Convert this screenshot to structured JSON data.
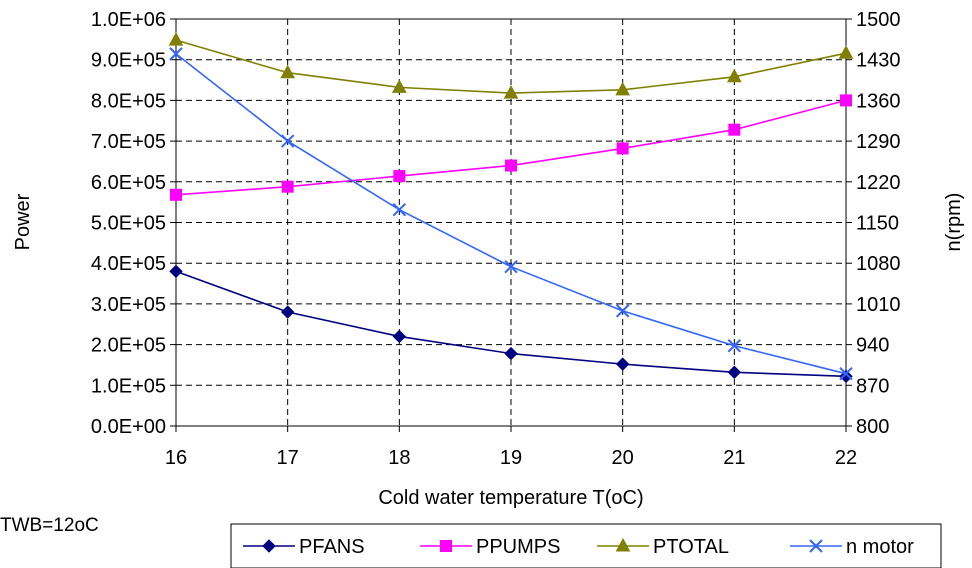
{
  "chart_data": {
    "type": "line",
    "title": "",
    "xlabel": "Cold water temperature T(oC)",
    "ylabel": "Power",
    "y2label": "n(rpm)",
    "x": [
      16,
      17,
      18,
      19,
      20,
      21,
      22
    ],
    "xlim": [
      16,
      22
    ],
    "ylim": [
      0,
      1000000
    ],
    "y2lim": [
      800,
      1500
    ],
    "y_ticks": [
      {
        "value": 0,
        "label": "0.0E+00"
      },
      {
        "value": 100000,
        "label": "1.0E+05"
      },
      {
        "value": 200000,
        "label": "2.0E+05"
      },
      {
        "value": 300000,
        "label": "3.0E+05"
      },
      {
        "value": 400000,
        "label": "4.0E+05"
      },
      {
        "value": 500000,
        "label": "5.0E+05"
      },
      {
        "value": 600000,
        "label": "6.0E+05"
      },
      {
        "value": 700000,
        "label": "7.0E+05"
      },
      {
        "value": 800000,
        "label": "8.0E+05"
      },
      {
        "value": 900000,
        "label": "9.0E+05"
      },
      {
        "value": 1000000,
        "label": "1.0E+06"
      }
    ],
    "y2_ticks": [
      {
        "value": 800,
        "label": "800"
      },
      {
        "value": 870,
        "label": "870"
      },
      {
        "value": 940,
        "label": "940"
      },
      {
        "value": 1010,
        "label": "1010"
      },
      {
        "value": 1080,
        "label": "1080"
      },
      {
        "value": 1150,
        "label": "1150"
      },
      {
        "value": 1220,
        "label": "1220"
      },
      {
        "value": 1290,
        "label": "1290"
      },
      {
        "value": 1360,
        "label": "1360"
      },
      {
        "value": 1430,
        "label": "1430"
      },
      {
        "value": 1500,
        "label": "1500"
      }
    ],
    "grid": true,
    "legend_position": "bottom-right",
    "series": [
      {
        "name": "PFANS",
        "axis": "left",
        "color": "#000080",
        "marker": "diamond",
        "values": [
          380000,
          280000,
          220000,
          178000,
          152000,
          132000,
          122000
        ]
      },
      {
        "name": "PPUMPS",
        "axis": "left",
        "color": "#ff00ff",
        "marker": "square",
        "values": [
          568000,
          588000,
          614000,
          640000,
          682000,
          728000,
          800000
        ]
      },
      {
        "name": "PTOTAL",
        "axis": "left",
        "color": "#808000",
        "marker": "triangle",
        "values": [
          948000,
          868000,
          832000,
          818000,
          826000,
          858000,
          916000
        ]
      },
      {
        "name": "n motor",
        "axis": "right",
        "color": "#3366ff",
        "marker": "x",
        "values": [
          1440,
          1290,
          1172,
          1074,
          998,
          938,
          890
        ]
      }
    ]
  },
  "annotation": "TWB=12oC"
}
